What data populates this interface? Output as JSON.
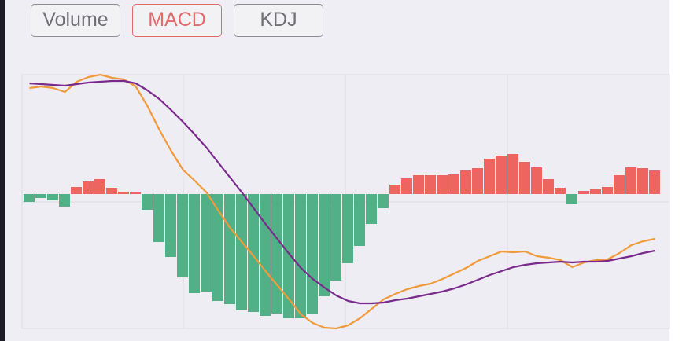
{
  "tabs": [
    "Volume",
    "MACD",
    "KDJ"
  ],
  "active_tab": 1,
  "chart_data": {
    "type": "macd",
    "ylim": [
      -17.1,
      15.2
    ],
    "series": [
      {
        "type": "bar",
        "positive_color": "#ee6461",
        "negative_color": "#52b086",
        "values": [
          -1.0,
          -0.5,
          -0.8,
          -1.6,
          0.9,
          1.6,
          1.9,
          0.8,
          0.3,
          0.2,
          -2.0,
          -6.1,
          -8.0,
          -10.6,
          -12.6,
          -12.4,
          -13.6,
          -14.0,
          -14.8,
          -15.0,
          -15.5,
          -15.2,
          -15.8,
          -15.8,
          -15.3,
          -13.0,
          -11.0,
          -8.8,
          -6.6,
          -3.8,
          -1.8,
          1.2,
          2.0,
          2.4,
          2.4,
          2.4,
          2.5,
          3.0,
          3.3,
          4.5,
          4.9,
          5.1,
          4.1,
          3.4,
          1.9,
          0.8,
          -1.3,
          0.4,
          0.6,
          0.9,
          2.4,
          3.4,
          3.3,
          3.0
        ]
      },
      {
        "type": "line",
        "color": "#f09a3a",
        "values": [
          13.5,
          13.7,
          13.5,
          13.0,
          14.3,
          14.9,
          15.2,
          14.8,
          14.6,
          13.7,
          11.2,
          8.2,
          5.5,
          3.1,
          1.7,
          0.2,
          -2.1,
          -4.3,
          -6.1,
          -7.9,
          -9.8,
          -11.6,
          -13.4,
          -15.3,
          -16.4,
          -17.0,
          -17.1,
          -16.7,
          -15.8,
          -14.6,
          -13.4,
          -12.7,
          -12.1,
          -11.7,
          -11.4,
          -10.8,
          -10.1,
          -9.4,
          -8.5,
          -7.9,
          -7.3,
          -7.4,
          -7.3,
          -7.9,
          -8.1,
          -8.4,
          -9.3,
          -8.7,
          -8.4,
          -8.3,
          -7.5,
          -6.5,
          -6.0,
          -5.7
        ]
      },
      {
        "type": "line",
        "color": "#7a2a8c",
        "values": [
          14.1,
          14.0,
          13.9,
          13.8,
          14.0,
          14.2,
          14.3,
          14.4,
          14.4,
          14.1,
          13.2,
          12.1,
          10.7,
          9.2,
          7.6,
          5.9,
          4.0,
          2.1,
          0.2,
          -1.8,
          -3.8,
          -5.7,
          -7.6,
          -9.4,
          -10.8,
          -11.9,
          -12.9,
          -13.6,
          -13.9,
          -13.9,
          -13.8,
          -13.5,
          -13.3,
          -13.0,
          -12.7,
          -12.4,
          -12.0,
          -11.5,
          -10.9,
          -10.3,
          -9.8,
          -9.3,
          -9.0,
          -8.8,
          -8.7,
          -8.6,
          -8.7,
          -8.6,
          -8.6,
          -8.5,
          -8.2,
          -7.9,
          -7.5,
          -7.2
        ]
      }
    ]
  }
}
